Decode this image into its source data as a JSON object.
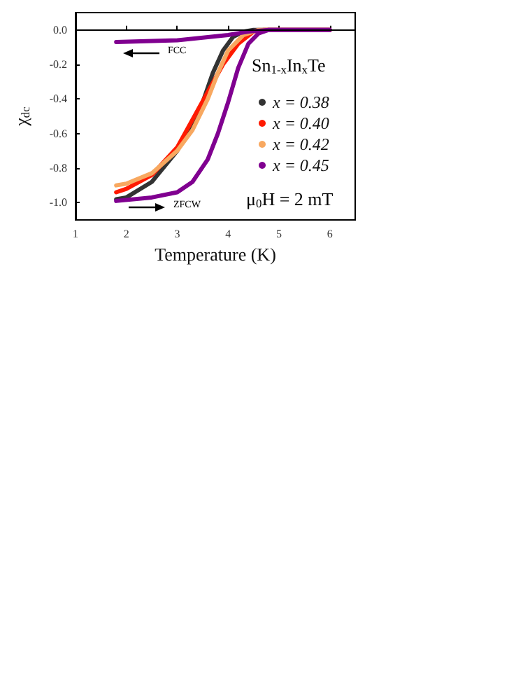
{
  "chart_data": {
    "type": "line",
    "xlabel": "Temperature (K)",
    "ylabel": "χ$_{dc}$",
    "legend_title": "Sn$_{1-x}$In$_{x}$Te",
    "annotations": [
      "FCC",
      "ZFCW",
      "μ$_{0}$H = 2 mT"
    ],
    "series": [
      {
        "name": "x = 0.38",
        "color": "#333333",
        "x": [
          1.8,
          2.0,
          2.5,
          3.0,
          3.3,
          3.5,
          3.7,
          3.9,
          4.1,
          4.3,
          4.5,
          6.0
        ],
        "values": [
          -0.98,
          -0.97,
          -0.88,
          -0.7,
          -0.55,
          -0.42,
          -0.25,
          -0.12,
          -0.04,
          -0.01,
          0,
          0
        ]
      },
      {
        "name": "x = 0.40",
        "color": "#ff1a00",
        "x": [
          1.8,
          2.0,
          2.5,
          3.0,
          3.3,
          3.6,
          3.9,
          4.2,
          4.5,
          4.7,
          6.0
        ],
        "values": [
          -0.94,
          -0.92,
          -0.84,
          -0.68,
          -0.52,
          -0.36,
          -0.2,
          -0.08,
          -0.01,
          0,
          0
        ]
      },
      {
        "name": "x = 0.42",
        "color": "#f8a860",
        "x": [
          1.8,
          2.0,
          2.5,
          3.0,
          3.3,
          3.6,
          3.8,
          4.0,
          4.3,
          4.6,
          6.0
        ],
        "values": [
          -0.9,
          -0.89,
          -0.83,
          -0.7,
          -0.58,
          -0.4,
          -0.25,
          -0.12,
          -0.03,
          0,
          0
        ]
      },
      {
        "name": "x = 0.45",
        "color": "#800090",
        "x": [
          1.8,
          2.5,
          3.0,
          3.3,
          3.6,
          3.8,
          4.0,
          4.2,
          4.4,
          4.6,
          4.8,
          6.0
        ],
        "values": [
          -0.99,
          -0.97,
          -0.94,
          -0.88,
          -0.75,
          -0.6,
          -0.42,
          -0.22,
          -0.08,
          -0.02,
          0,
          0
        ]
      },
      {
        "color": "#800090",
        "x": [
          1.8,
          3.0,
          4.0,
          4.4,
          4.8,
          6.0
        ],
        "values": [
          -0.07,
          -0.06,
          -0.03,
          -0.01,
          0,
          0
        ]
      }
    ],
    "xlim": [
      1,
      6.5
    ],
    "xticks": [
      1,
      2,
      3,
      4,
      5,
      6
    ],
    "ylim": [
      -1.1,
      0.1
    ],
    "yticks": [
      {
        "value": -1,
        "label": "-1.0"
      },
      -0.8,
      -0.6,
      -0.4,
      -0.2,
      {
        "value": 0,
        "label": "0.0"
      }
    ],
    "ref_lines": [
      {
        "axis": "y",
        "value": 0,
        "color": "#000000"
      }
    ],
    "grid": false,
    "legend": "right",
    "line_style": "solid",
    "marker": "none"
  }
}
